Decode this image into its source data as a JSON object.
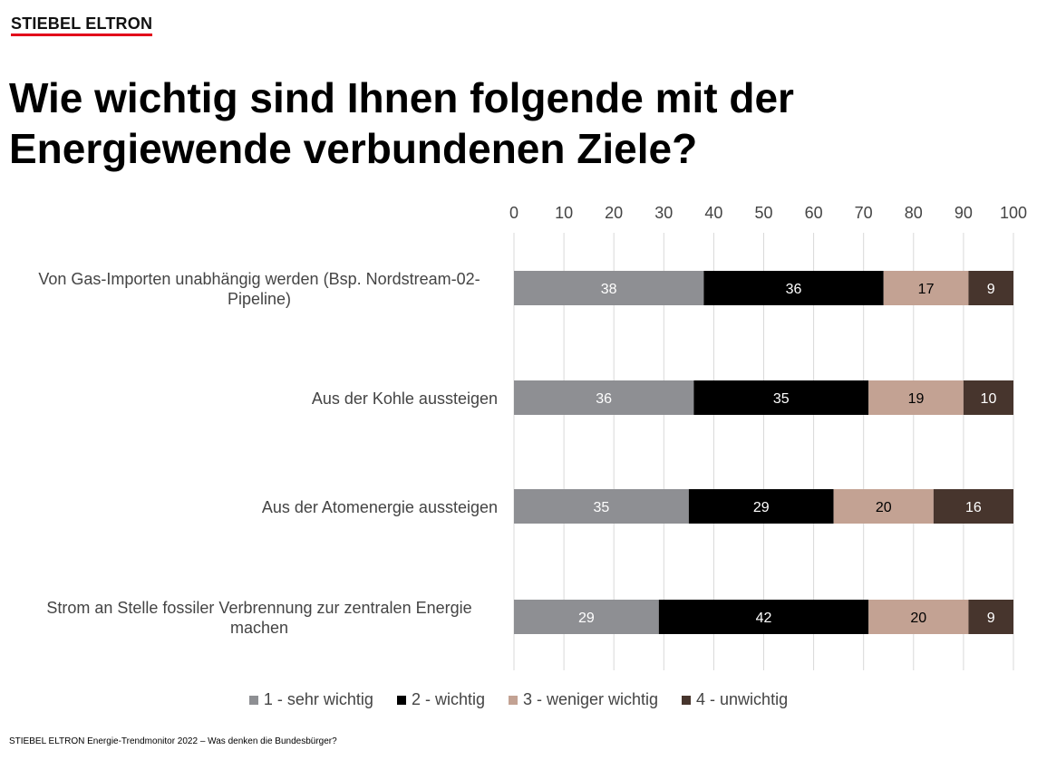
{
  "brand": "STIEBEL ELTRON",
  "footer": "STIEBEL ELTRON Energie-Trendmonitor 2022 – Was denken die Bundesbürger?",
  "chart_data": {
    "type": "bar",
    "orientation": "horizontal",
    "stacked": true,
    "title": "Wie wichtig sind Ihnen folgende mit der Energiewende verbundenen Ziele?",
    "xlim": [
      0,
      100
    ],
    "x_ticks": [
      "0",
      "10",
      "20",
      "30",
      "40",
      "50",
      "60",
      "70",
      "80",
      "90",
      "100"
    ],
    "grid": true,
    "legend_position": "bottom",
    "categories": [
      [
        "Von Gas-Importen unabhängig werden (Bsp. Nordstream-02-",
        "Pipeline)"
      ],
      [
        "Aus der Kohle aussteigen"
      ],
      [
        "Aus der Atomenergie aussteigen"
      ],
      [
        "Strom an Stelle fossiler Verbrennung zur zentralen Energie",
        "machen"
      ]
    ],
    "series": [
      {
        "name": "1 - sehr wichtig",
        "color": "#8e8f93",
        "label_color": "#ffffff",
        "values": [
          38,
          36,
          35,
          29
        ]
      },
      {
        "name": "2 - wichtig",
        "color": "#000000",
        "label_color": "#ffffff",
        "values": [
          36,
          35,
          29,
          42
        ]
      },
      {
        "name": "3 - weniger wichtig",
        "color": "#c3a293",
        "label_color": "#000000",
        "values": [
          17,
          19,
          20,
          20
        ]
      },
      {
        "name": "4 - unwichtig",
        "color": "#47352d",
        "label_color": "#ffffff",
        "values": [
          9,
          10,
          16,
          9
        ]
      }
    ]
  }
}
